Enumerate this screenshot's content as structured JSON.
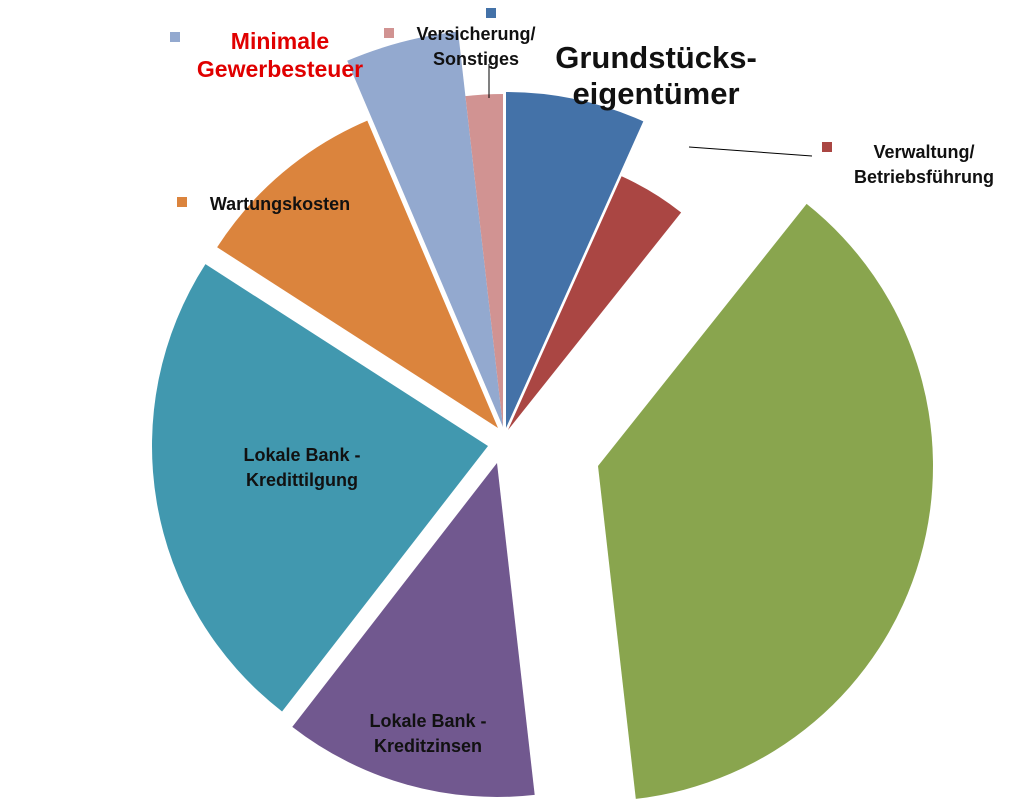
{
  "chart_data": {
    "type": "pie",
    "start_angle_deg": 0,
    "direction": "clockwise",
    "slices": [
      {
        "label_lines": [
          "Grundstücks-",
          "eigentümer"
        ],
        "value": 6.7,
        "color": "#4472a8"
      },
      {
        "label_lines": [
          "Verwaltung/",
          "Betriebsführung"
        ],
        "value": 4.0,
        "color": "#aa4643"
      },
      {
        "label_lines": [],
        "value": 37.5,
        "color": "#89a54e"
      },
      {
        "label_lines": [
          "Lokale Bank -",
          "Kreditzinsen"
        ],
        "value": 12.3,
        "color": "#71588f"
      },
      {
        "label_lines": [
          "Lokale Bank -",
          "Kredittilgung"
        ],
        "value": 23.6,
        "color": "#4198af"
      },
      {
        "label_lines": [
          "Wartungskosten"
        ],
        "value": 9.5,
        "color": "#db843d"
      },
      {
        "label_lines": [
          "Minimale",
          "Gewerbesteuer"
        ],
        "value": 4.6,
        "color": "#93a9cf"
      },
      {
        "label_lines": [
          "Versicherung/",
          "Sonstiges"
        ],
        "value": 1.8,
        "color": "#d19392"
      }
    ]
  }
}
